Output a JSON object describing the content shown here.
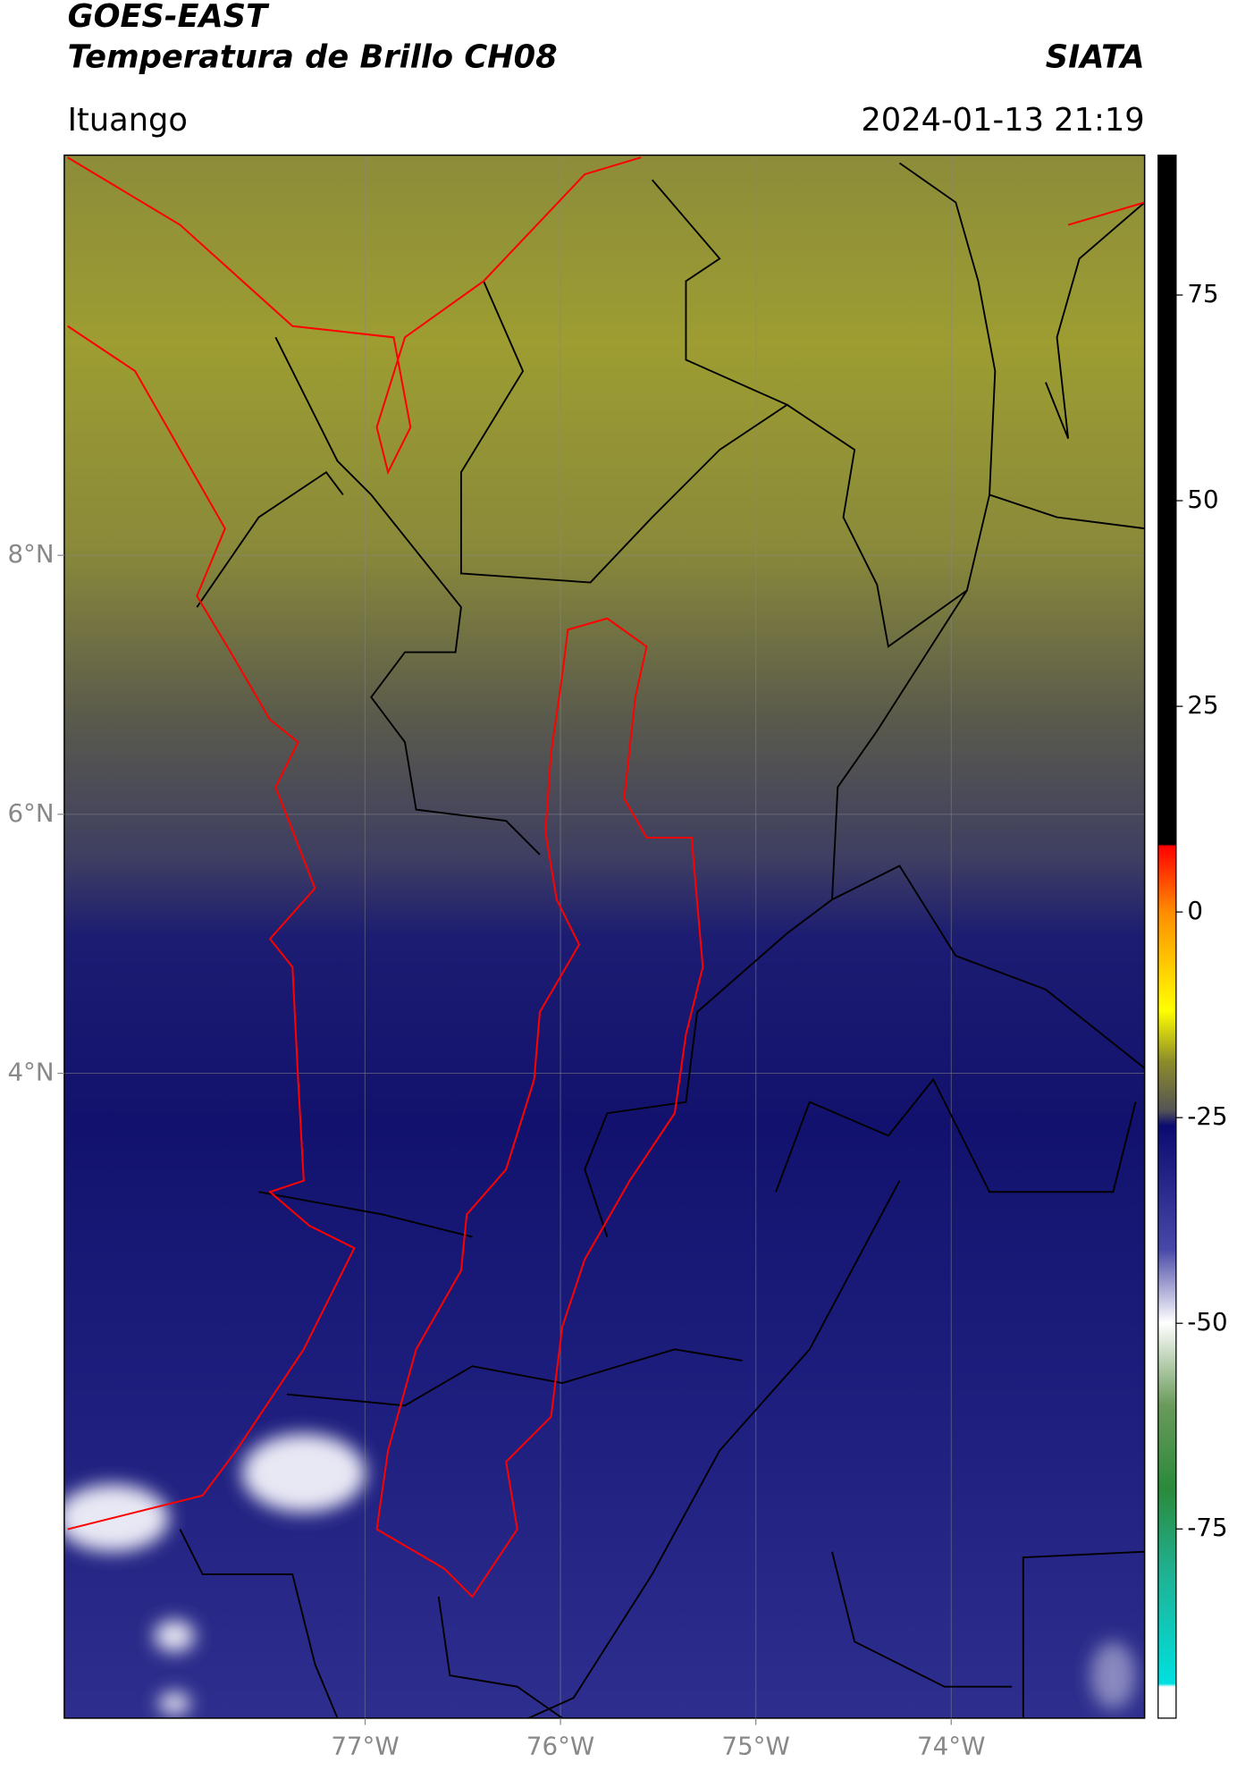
{
  "chart_data": {
    "type": "map",
    "title": "GOES-EAST",
    "subtitle": "Temperatura de Brillo CH08",
    "credit": "SIATA",
    "location": "Ituango",
    "datetime": "2024-01-13 21:19",
    "xlim": [
      -78.54,
      -73.01
    ],
    "ylim": [
      -0.98,
      11.09
    ],
    "xticks": [
      {
        "value": -77,
        "label": "77°W"
      },
      {
        "value": -76,
        "label": "76°W"
      },
      {
        "value": -75,
        "label": "75°W"
      },
      {
        "value": -74,
        "label": "74°W"
      }
    ],
    "yticks": [
      {
        "value": 8,
        "label": "8°N"
      },
      {
        "value": 6,
        "label": "6°N"
      },
      {
        "value": 4,
        "label": "4°N"
      }
    ],
    "grid": true,
    "colorbar": {
      "lim": [
        -98,
        92
      ],
      "ticks": [
        75,
        50,
        25,
        0,
        -25,
        -50,
        -75
      ]
    }
  }
}
